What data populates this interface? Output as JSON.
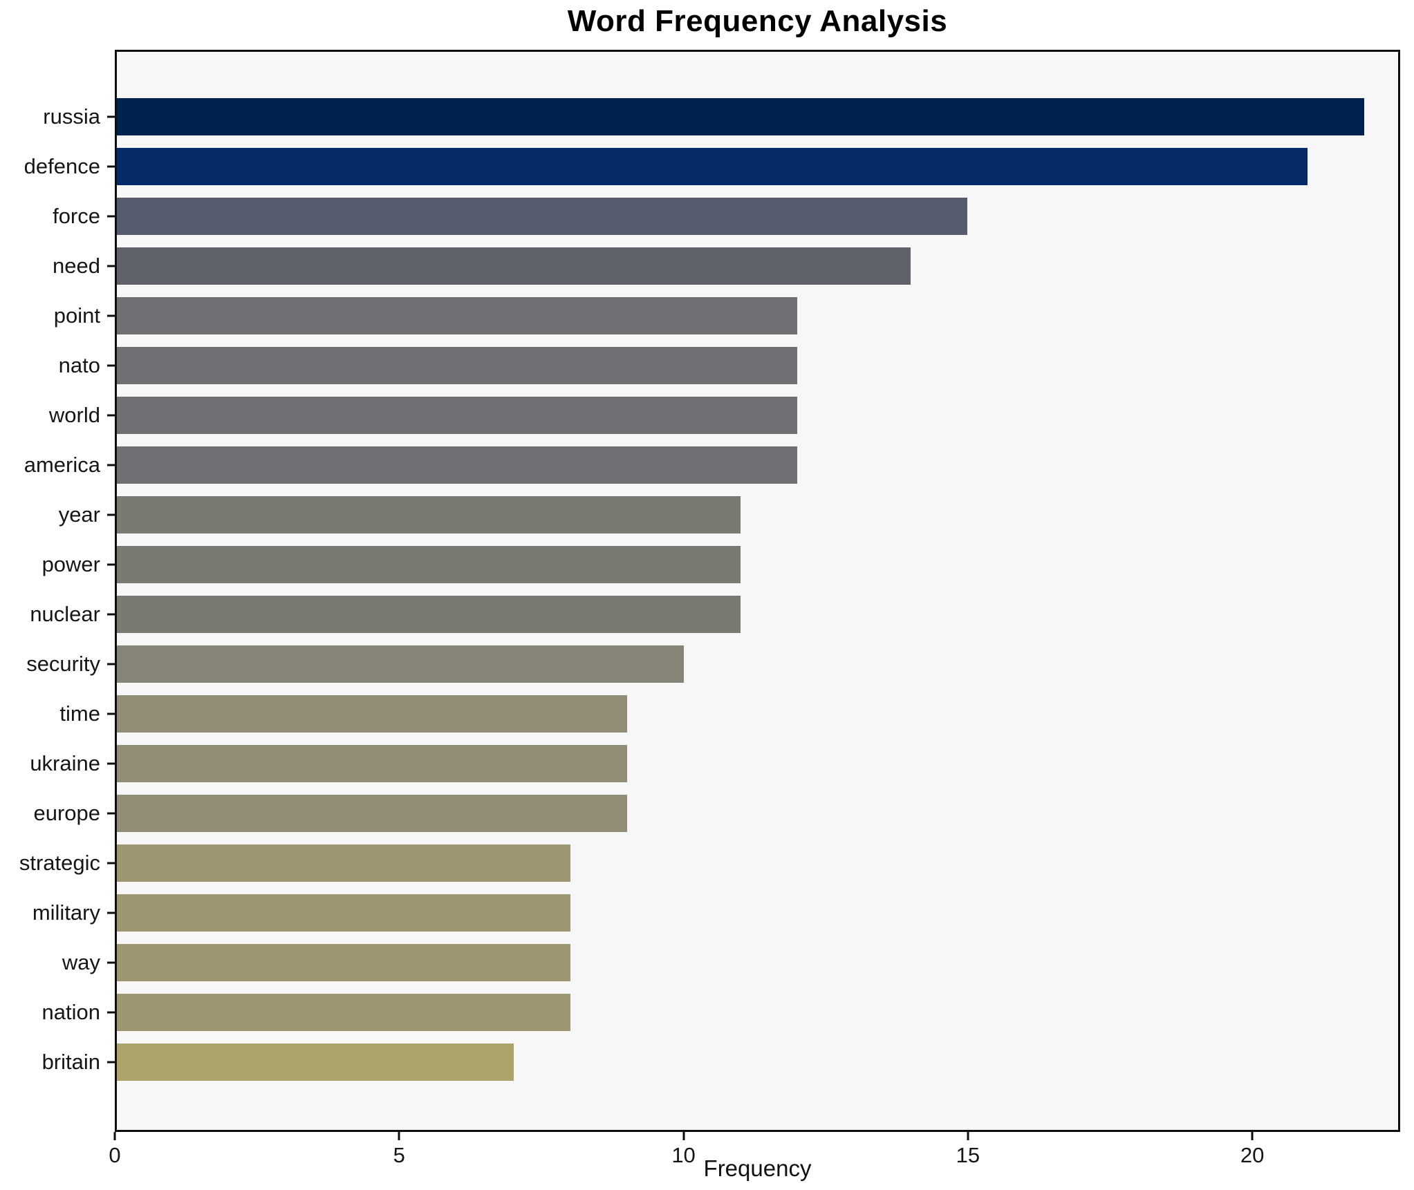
{
  "chart_data": {
    "type": "bar",
    "orientation": "horizontal",
    "title": "Word Frequency Analysis",
    "xlabel": "Frequency",
    "ylabel": "",
    "categories": [
      "russia",
      "defence",
      "force",
      "need",
      "point",
      "nato",
      "world",
      "america",
      "year",
      "power",
      "nuclear",
      "security",
      "time",
      "ukraine",
      "europe",
      "strategic",
      "military",
      "way",
      "nation",
      "britain"
    ],
    "values": [
      22,
      21,
      15,
      14,
      12,
      12,
      12,
      12,
      11,
      11,
      11,
      10,
      9,
      9,
      9,
      8,
      8,
      8,
      8,
      7
    ],
    "bar_colors": [
      "#00224e",
      "#042a67",
      "#565c6d",
      "#5f626b",
      "#6f7074",
      "#6f7074",
      "#6f7074",
      "#6f7074",
      "#7a7a72",
      "#7a7a72",
      "#7a7a72",
      "#868477",
      "#918d76",
      "#918d76",
      "#918d76",
      "#9d9670",
      "#9d9670",
      "#9d9670",
      "#9d9670",
      "#aba46b"
    ],
    "xlim": [
      0,
      22.6
    ],
    "xticks": [
      0,
      5,
      10,
      15,
      20
    ],
    "grid": false,
    "legend": null,
    "plot_background": "#f7f7f8",
    "figure_background": "#ffffff",
    "spine_color": "#0e0e0e",
    "colormap": "cividis"
  }
}
